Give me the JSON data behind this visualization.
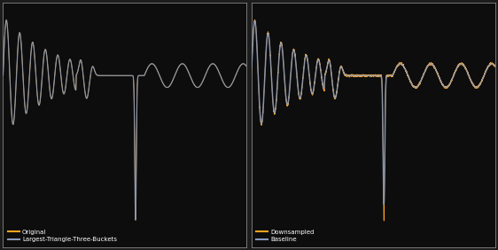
{
  "figsize": [
    5.62,
    2.82
  ],
  "dpi": 100,
  "bg_color": "#1c1c1c",
  "panel_bg": "#0d0d0d",
  "panel_edge": "#888888",
  "orange_color": "#FFA520",
  "blue_color": "#8899BB",
  "legend_left_1": "Original",
  "legend_left_2": "Largest-Triangle-Three-Buckets",
  "legend_right_1": "Downsampled",
  "legend_right_2": "Baseline",
  "legend_fontsize": 5.0
}
